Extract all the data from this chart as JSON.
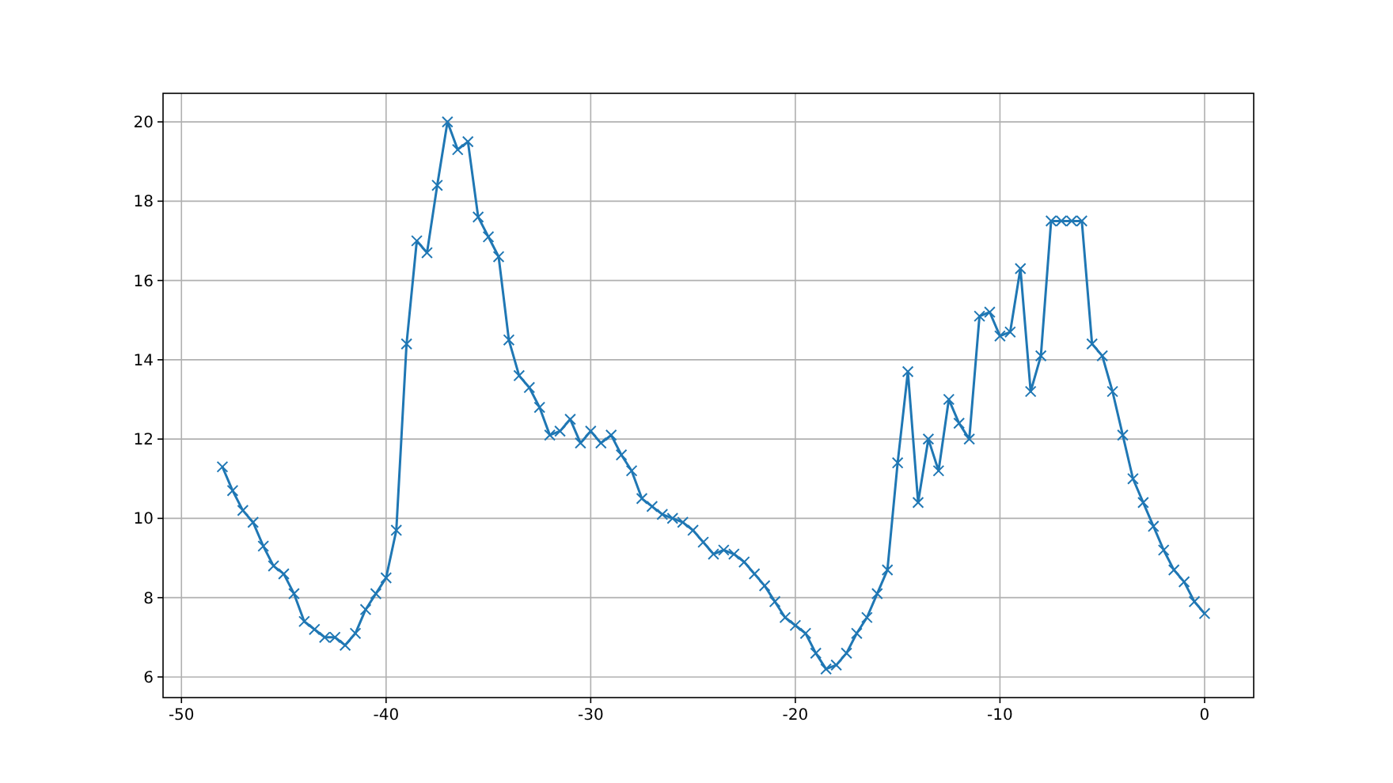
{
  "chart_data": {
    "type": "line",
    "x": [
      -48,
      -47.5,
      -47,
      -46.5,
      -46,
      -45.5,
      -45,
      -44.5,
      -44,
      -43.5,
      -43,
      -42.5,
      -42,
      -41.5,
      -41,
      -40.5,
      -40,
      -39.5,
      -39,
      -38.5,
      -38,
      -37.5,
      -37,
      -36.5,
      -36,
      -35.5,
      -35,
      -34.5,
      -34,
      -33.5,
      -33,
      -32.5,
      -32,
      -31.5,
      -31,
      -30.5,
      -30,
      -29.5,
      -29,
      -28.5,
      -28,
      -27.5,
      -27,
      -26.5,
      -26,
      -25.5,
      -25,
      -24.5,
      -24,
      -23.5,
      -23,
      -22.5,
      -22,
      -21.5,
      -21,
      -20.5,
      -20,
      -19.5,
      -19,
      -18.5,
      -18,
      -17.5,
      -17,
      -16.5,
      -16,
      -15.5,
      -15,
      -14.5,
      -14,
      -13.5,
      -13,
      -12.5,
      -12,
      -11.5,
      -11,
      -10.5,
      -10,
      -9.5,
      -9,
      -8.5,
      -8,
      -7.5,
      -7,
      -6.5,
      -6,
      -5.5,
      -5,
      -4.5,
      -4,
      -3.5,
      -3,
      -2.5,
      -2,
      -1.5,
      -1,
      -0.5,
      0
    ],
    "series": [
      {
        "color": "#1f77b4",
        "values": [
          11.3,
          10.7,
          10.2,
          9.9,
          9.3,
          8.8,
          8.6,
          8.1,
          7.4,
          7.2,
          7.0,
          7.0,
          6.8,
          7.1,
          7.7,
          8.1,
          8.5,
          9.7,
          14.4,
          17.0,
          16.7,
          18.4,
          20.0,
          19.3,
          19.5,
          17.6,
          17.1,
          16.6,
          14.5,
          13.6,
          13.3,
          12.8,
          12.1,
          12.2,
          12.5,
          11.9,
          12.2,
          11.9,
          12.1,
          11.6,
          11.2,
          10.5,
          10.3,
          10.1,
          10.0,
          9.9,
          9.7,
          9.4,
          9.1,
          9.2,
          9.1,
          8.9,
          8.6,
          8.3,
          7.9,
          7.5,
          7.3,
          7.1,
          6.6,
          6.2,
          6.3,
          6.6,
          7.1,
          7.5,
          8.1,
          8.7,
          11.4,
          13.7,
          10.4,
          12.0,
          11.2,
          13.0,
          12.4,
          12.0,
          15.1,
          15.2,
          14.6,
          14.7,
          16.3,
          13.2,
          14.1,
          17.5,
          17.5,
          17.5,
          17.5,
          14.4,
          14.1,
          13.2,
          12.1,
          11.0,
          10.4,
          9.8,
          9.2,
          8.7,
          8.4,
          7.9,
          7.6
        ]
      }
    ],
    "xlim": [
      -50.9,
      2.4
    ],
    "xticks": [
      -50,
      -40,
      -30,
      -20,
      -10,
      0
    ],
    "ylim": [
      5.48,
      20.72
    ],
    "yticks": [
      6,
      8,
      10,
      12,
      14,
      16,
      18,
      20
    ],
    "grid": true,
    "marker": "cross",
    "line_style": "solid"
  }
}
